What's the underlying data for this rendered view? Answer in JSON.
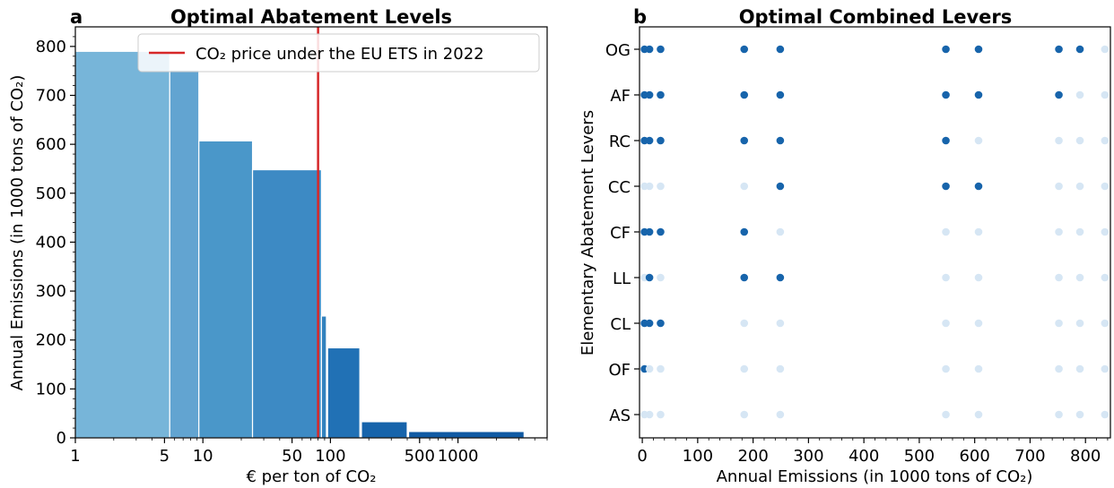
{
  "chart_data": [
    {
      "panel": "a",
      "type": "bar",
      "title": "Optimal Abatement Levels",
      "xlabel": "€ per ton of CO₂",
      "ylabel": "Annual Emissions (in 1000 tons of CO₂)",
      "xscale": "log",
      "xlim": [
        1,
        5000
      ],
      "ylim": [
        0,
        840
      ],
      "xticks": [
        {
          "value": 1,
          "label": "1"
        },
        {
          "value": 5,
          "label": "5"
        },
        {
          "value": 10,
          "label": "10"
        },
        {
          "value": 50,
          "label": "50"
        },
        {
          "value": 100,
          "label": "100"
        },
        {
          "value": 500,
          "label": "500"
        },
        {
          "value": 1000,
          "label": "1000"
        }
      ],
      "yticks": [
        0,
        100,
        200,
        300,
        400,
        500,
        600,
        700,
        800
      ],
      "bars": [
        {
          "x0": 1,
          "x1": 5.5,
          "value": 790,
          "color": "#77b5d9"
        },
        {
          "x0": 5.5,
          "x1": 9.3,
          "value": 752,
          "color": "#62a4d1"
        },
        {
          "x0": 9.3,
          "x1": 24.5,
          "value": 607,
          "color": "#4a97c9"
        },
        {
          "x0": 24.5,
          "x1": 85,
          "value": 548,
          "color": "#3d8ac4"
        },
        {
          "x0": 85,
          "x1": 93,
          "value": 249,
          "color": "#3282be"
        },
        {
          "x0": 95,
          "x1": 170,
          "value": 184,
          "color": "#2171b5"
        },
        {
          "x0": 175,
          "x1": 400,
          "value": 33,
          "color": "#1764ab"
        },
        {
          "x0": 410,
          "x1": 3300,
          "value": 13,
          "color": "#105aa3"
        }
      ],
      "reference_line": {
        "x": 80,
        "label": "CO₂ price under the EU ETS in 2022",
        "color": "#d62728"
      },
      "legend": "top-right"
    },
    {
      "panel": "b",
      "type": "scatter",
      "title": "Optimal Combined Levers",
      "xlabel": "Annual Emissions (in 1000 tons of CO₂)",
      "ylabel": "Elementary Abatement Levers",
      "xlim": [
        -5,
        845
      ],
      "xticks": [
        0,
        100,
        200,
        300,
        400,
        500,
        600,
        700,
        800
      ],
      "categories": [
        "OG",
        "AF",
        "RC",
        "CC",
        "CF",
        "LL",
        "CL",
        "OF",
        "AS"
      ],
      "x": [
        4,
        13,
        33,
        184,
        249,
        548,
        607,
        752,
        790,
        835
      ],
      "active": {
        "OG": [
          1,
          1,
          1,
          1,
          1,
          1,
          1,
          1,
          1,
          0
        ],
        "AF": [
          1,
          1,
          1,
          1,
          1,
          1,
          1,
          1,
          0,
          0
        ],
        "RC": [
          1,
          1,
          1,
          1,
          1,
          1,
          0,
          0,
          0,
          0
        ],
        "CC": [
          0,
          0,
          0,
          0,
          1,
          1,
          1,
          0,
          0,
          0
        ],
        "CF": [
          1,
          1,
          1,
          1,
          0,
          0,
          0,
          0,
          0,
          0
        ],
        "LL": [
          0,
          1,
          0,
          1,
          1,
          0,
          0,
          0,
          0,
          0
        ],
        "CL": [
          1,
          1,
          1,
          0,
          0,
          0,
          0,
          0,
          0,
          0
        ],
        "OF": [
          1,
          0,
          0,
          0,
          0,
          0,
          0,
          0,
          0,
          0
        ],
        "AS": [
          0,
          0,
          0,
          0,
          0,
          0,
          0,
          0,
          0,
          0
        ]
      },
      "colors": {
        "active": "#1764ab",
        "inactive": "#d6e6f4"
      }
    }
  ]
}
